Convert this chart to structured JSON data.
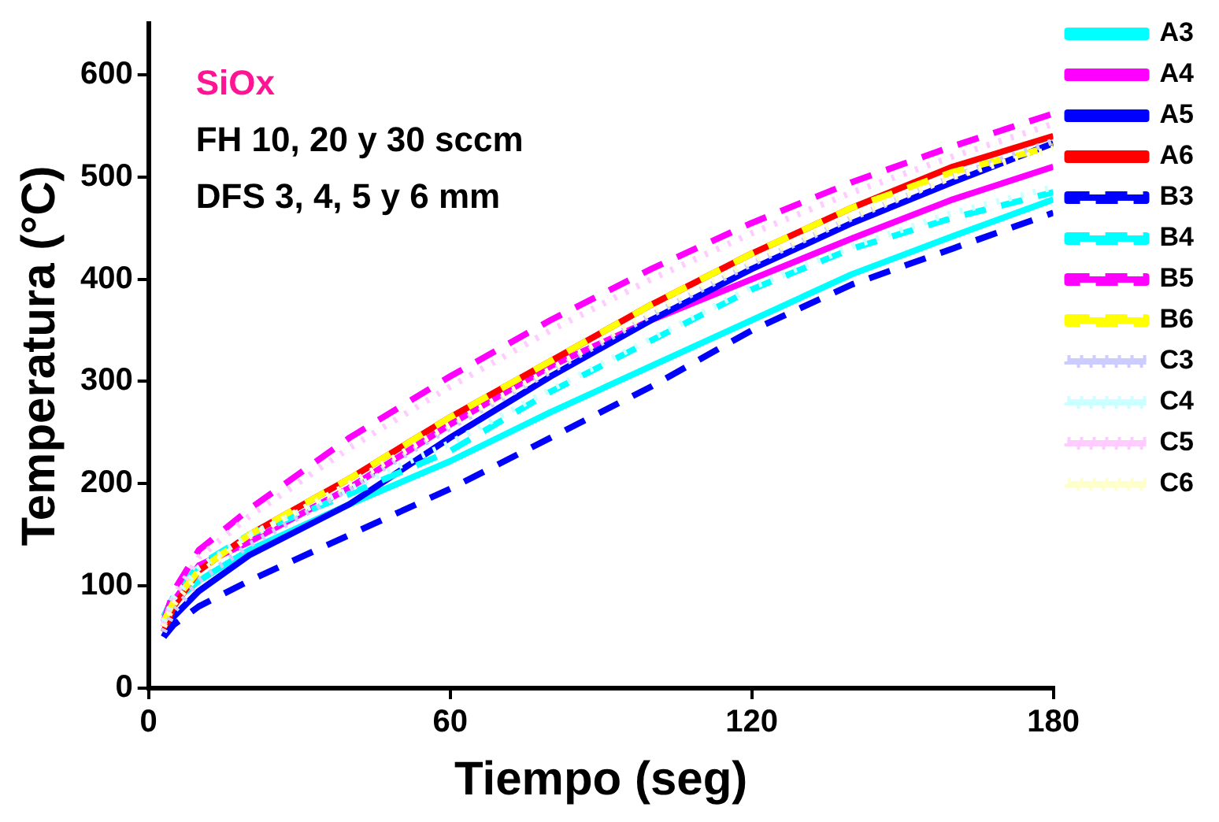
{
  "chart_data": {
    "type": "line",
    "xlabel": "Tiempo (seg)",
    "ylabel": "Temperatura (°C)",
    "annotations": [
      "SiOx",
      "FH 10, 20 y 30 sccm",
      "DFS 3, 4, 5 y 6 mm"
    ],
    "xlim": [
      0,
      180
    ],
    "xticks": [
      0,
      60,
      120,
      180
    ],
    "ylim": [
      0,
      650
    ],
    "yticks": [
      0,
      100,
      200,
      300,
      400,
      500,
      600
    ],
    "grid": false,
    "legend": "right",
    "marker": "none",
    "x": [
      3,
      5,
      10,
      20,
      40,
      60,
      80,
      100,
      120,
      140,
      160,
      180
    ],
    "series": [
      {
        "name": "A3",
        "color": "#00ffff",
        "line_style": "solid",
        "values": [
          65,
          85,
          105,
          135,
          180,
          222,
          270,
          315,
          360,
          405,
          442,
          478
        ]
      },
      {
        "name": "A4",
        "color": "#ff00ff",
        "line_style": "solid",
        "values": [
          60,
          85,
          120,
          143,
          196,
          258,
          315,
          360,
          400,
          440,
          478,
          510
        ]
      },
      {
        "name": "A5",
        "color": "#0000ff",
        "line_style": "solid",
        "values": [
          50,
          70,
          95,
          130,
          180,
          245,
          305,
          360,
          410,
          455,
          495,
          533
        ]
      },
      {
        "name": "A6",
        "color": "#ff0000",
        "line_style": "solid",
        "values": [
          55,
          80,
          115,
          150,
          205,
          265,
          320,
          375,
          425,
          470,
          510,
          540
        ]
      },
      {
        "name": "B3",
        "color": "#0000ff",
        "line_style": "dashed",
        "values": [
          50,
          62,
          80,
          105,
          150,
          195,
          245,
          295,
          350,
          395,
          430,
          465
        ]
      },
      {
        "name": "B4",
        "color": "#00ffff",
        "line_style": "dashed",
        "values": [
          70,
          90,
          120,
          150,
          190,
          232,
          290,
          340,
          390,
          430,
          460,
          485
        ]
      },
      {
        "name": "B5",
        "color": "#ff00ff",
        "line_style": "dashed",
        "values": [
          65,
          95,
          135,
          175,
          245,
          305,
          360,
          410,
          455,
          495,
          530,
          562
        ]
      },
      {
        "name": "B6",
        "color": "#ffff00",
        "line_style": "dashed",
        "values": [
          65,
          85,
          115,
          150,
          205,
          265,
          320,
          375,
          425,
          470,
          505,
          530
        ]
      },
      {
        "name": "C3",
        "color": "#ccccff",
        "line_style": "dotted",
        "values": [
          55,
          75,
          105,
          140,
          195,
          255,
          310,
          365,
          415,
          460,
          500,
          535
        ]
      },
      {
        "name": "C4",
        "color": "#ccffff",
        "line_style": "dotted",
        "values": [
          65,
          88,
          118,
          150,
          195,
          240,
          292,
          342,
          392,
          432,
          465,
          490
        ]
      },
      {
        "name": "C5",
        "color": "#ffccff",
        "line_style": "dotted",
        "values": [
          62,
          90,
          128,
          168,
          235,
          295,
          350,
          400,
          445,
          485,
          520,
          552
        ]
      },
      {
        "name": "C6",
        "color": "#ffffcc",
        "line_style": "dotted",
        "values": [
          60,
          82,
          112,
          148,
          200,
          258,
          312,
          368,
          418,
          462,
          500,
          528
        ]
      }
    ]
  }
}
